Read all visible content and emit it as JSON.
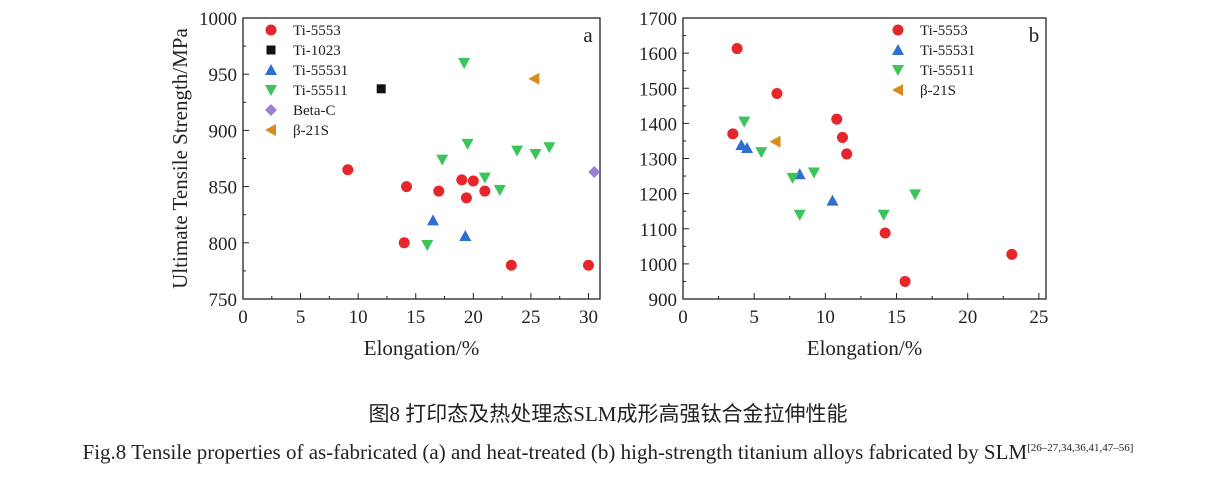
{
  "chart_data": [
    {
      "type": "scatter",
      "panel_label": "a",
      "xlabel": "Elongation/%",
      "ylabel": "Ultimate Tensile Strength/MPa",
      "xlim": [
        0,
        31
      ],
      "ylim": [
        750,
        1000
      ],
      "xticks": [
        0,
        5,
        10,
        15,
        20,
        25,
        30
      ],
      "yticks": [
        750,
        800,
        850,
        900,
        950,
        1000
      ],
      "grid": false,
      "legend_placement": "top-left",
      "series": [
        {
          "name": "Ti-5553",
          "marker": "circle",
          "color": "#e5262a",
          "points": [
            [
              9.1,
              865
            ],
            [
              14.2,
              850
            ],
            [
              17,
              846
            ],
            [
              19,
              856
            ],
            [
              20,
              855
            ],
            [
              19.4,
              840
            ],
            [
              21,
              846
            ],
            [
              14,
              800
            ],
            [
              23.3,
              780
            ],
            [
              30,
              780
            ]
          ]
        },
        {
          "name": "Ti-1023",
          "marker": "square",
          "color": "#111111",
          "points": [
            [
              12,
              937
            ]
          ]
        },
        {
          "name": "Ti-55531",
          "marker": "triangle-up",
          "color": "#2f6fd1",
          "points": [
            [
              16.5,
              820
            ],
            [
              19.3,
              806
            ]
          ]
        },
        {
          "name": "Ti-55511",
          "marker": "triangle-down",
          "color": "#3bc45a",
          "points": [
            [
              19.2,
              960
            ],
            [
              19.5,
              888
            ],
            [
              17.3,
              874
            ],
            [
              23.8,
              882
            ],
            [
              25.4,
              879
            ],
            [
              26.6,
              885
            ],
            [
              21,
              858
            ],
            [
              22.3,
              847
            ],
            [
              16,
              798
            ]
          ]
        },
        {
          "name": "Beta-C",
          "marker": "diamond",
          "color": "#9b7fd6",
          "points": [
            [
              30.5,
              863
            ]
          ]
        },
        {
          "name": "β-21S",
          "marker": "triangle-left",
          "color": "#d98c1e",
          "points": [
            [
              25.3,
              946
            ]
          ]
        }
      ]
    },
    {
      "type": "scatter",
      "panel_label": "b",
      "xlabel": "Elongation/%",
      "ylabel": "",
      "xlim": [
        0,
        25.5
      ],
      "ylim": [
        900,
        1700
      ],
      "xticks": [
        0,
        5,
        10,
        15,
        20,
        25
      ],
      "yticks": [
        900,
        1000,
        1100,
        1200,
        1300,
        1400,
        1500,
        1600,
        1700
      ],
      "grid": false,
      "legend_placement": "top-right",
      "series": [
        {
          "name": "Ti-5553",
          "marker": "circle",
          "color": "#e5262a",
          "points": [
            [
              3.8,
              1613
            ],
            [
              3.5,
              1370
            ],
            [
              6.6,
              1485
            ],
            [
              10.8,
              1412
            ],
            [
              11.2,
              1360
            ],
            [
              11.5,
              1313
            ],
            [
              14.2,
              1088
            ],
            [
              15.6,
              950
            ],
            [
              23.1,
              1027
            ]
          ]
        },
        {
          "name": "Ti-55531",
          "marker": "triangle-up",
          "color": "#2f6fd1",
          "points": [
            [
              4.1,
              1338
            ],
            [
              4.5,
              1330
            ],
            [
              8.2,
              1255
            ],
            [
              10.5,
              1180
            ]
          ]
        },
        {
          "name": "Ti-55511",
          "marker": "triangle-down",
          "color": "#3bc45a",
          "points": [
            [
              4.3,
              1405
            ],
            [
              5.5,
              1318
            ],
            [
              7.7,
              1245
            ],
            [
              9.2,
              1260
            ],
            [
              8.2,
              1140
            ],
            [
              14.1,
              1140
            ],
            [
              16.3,
              1198
            ]
          ]
        },
        {
          "name": "β-21S",
          "marker": "triangle-left",
          "color": "#d98c1e",
          "points": [
            [
              6.5,
              1348
            ]
          ]
        }
      ]
    }
  ],
  "caption": {
    "chinese": "图8  打印态及热处理态SLM成形高强钛合金拉伸性能",
    "english": "Fig.8  Tensile properties of as-fabricated (a) and heat-treated (b) high-strength titanium alloys fabricated by SLM",
    "refs": "[26–27,34,36,41,47–56]"
  }
}
